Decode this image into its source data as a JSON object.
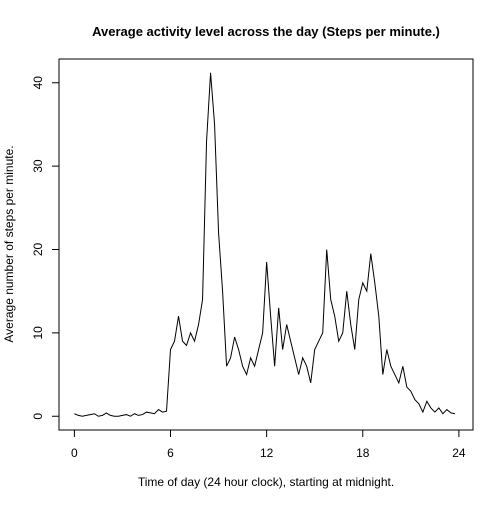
{
  "chart_data": {
    "type": "line",
    "title": "Average activity level across the day (Steps per minute.)",
    "x_label": "Time of day (24 hour clock), starting at midnight.",
    "y_label": "Average number of steps per minute.",
    "x": [
      0,
      0.25,
      0.5,
      0.75,
      1,
      1.25,
      1.5,
      1.75,
      2,
      2.25,
      2.5,
      2.75,
      3,
      3.25,
      3.5,
      3.75,
      4,
      4.25,
      4.5,
      4.75,
      5,
      5.25,
      5.5,
      5.75,
      6,
      6.25,
      6.5,
      6.75,
      7,
      7.25,
      7.5,
      7.75,
      8,
      8.25,
      8.5,
      8.75,
      9,
      9.25,
      9.5,
      9.75,
      10,
      10.25,
      10.5,
      10.75,
      11,
      11.25,
      11.5,
      11.75,
      12,
      12.25,
      12.5,
      12.75,
      13,
      13.25,
      13.5,
      13.75,
      14,
      14.25,
      14.5,
      14.75,
      15,
      15.25,
      15.5,
      15.75,
      16,
      16.25,
      16.5,
      16.75,
      17,
      17.25,
      17.5,
      17.75,
      18,
      18.25,
      18.5,
      18.75,
      19,
      19.25,
      19.5,
      19.75,
      20,
      20.25,
      20.5,
      20.75,
      21,
      21.25,
      21.5,
      21.75,
      22,
      22.25,
      22.5,
      22.75,
      23,
      23.25,
      23.5,
      23.75
    ],
    "series": [
      {
        "name": "steps",
        "color": "#000000",
        "values": [
          0.3,
          0.1,
          0,
          0.1,
          0.2,
          0.3,
          0,
          0.1,
          0.4,
          0.1,
          0,
          0,
          0.1,
          0.2,
          0,
          0.3,
          0.1,
          0.2,
          0.5,
          0.4,
          0.3,
          0.8,
          0.5,
          0.6,
          8,
          9,
          12,
          9,
          8.5,
          10,
          9,
          11,
          14,
          33,
          41.2,
          35,
          22,
          15,
          6,
          7,
          9.5,
          8,
          6,
          5,
          7,
          6,
          8,
          10,
          18.5,
          12,
          6,
          13,
          8,
          11,
          9,
          7,
          5,
          7,
          6,
          4,
          8,
          9,
          10,
          20,
          14,
          12,
          9,
          10,
          15,
          11,
          8,
          14,
          16,
          15,
          19.5,
          16,
          12,
          5,
          8,
          6,
          5,
          4,
          6,
          3.5,
          3,
          2,
          1.5,
          0.5,
          1.8,
          1,
          0.5,
          1,
          0.3,
          0.8,
          0.4,
          0.3
        ]
      }
    ],
    "xlim": [
      -0.96,
      24.88
    ],
    "ylim": [
      -1.65,
      42.85
    ],
    "xticks": [
      0,
      6,
      12,
      18,
      24
    ],
    "yticks": [
      0,
      10,
      20,
      30,
      40
    ]
  }
}
